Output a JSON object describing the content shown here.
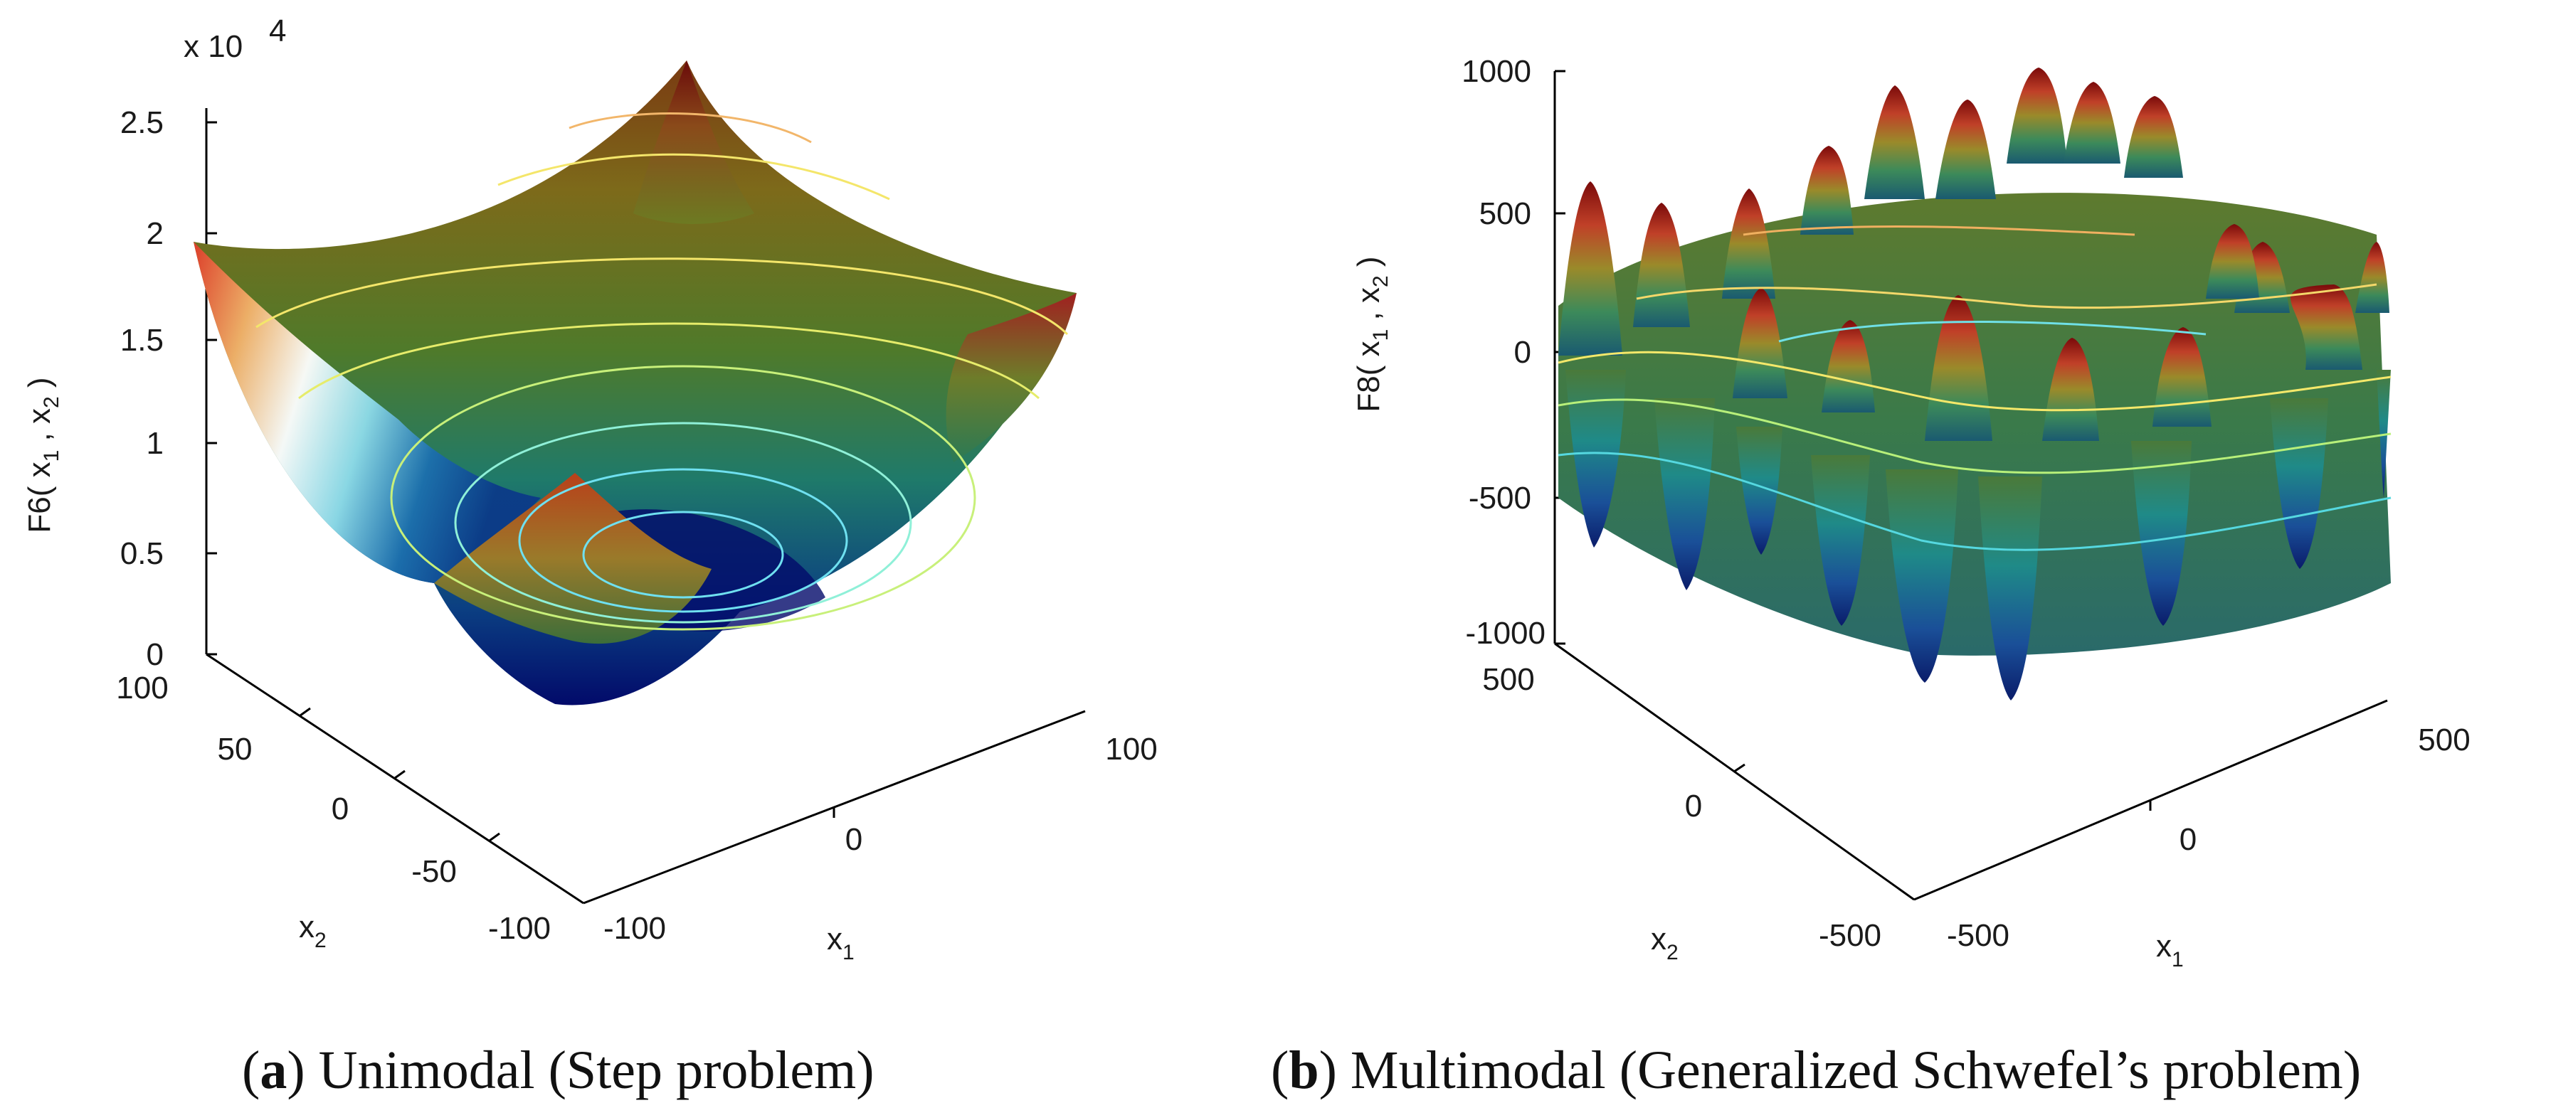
{
  "chart_data": [
    {
      "type": "surface3d",
      "panel": "a",
      "caption_label": "a",
      "caption_text": "Unimodal (Step problem)",
      "zlabel": "F6( x 1 , x 2 )",
      "zlabel_base": "F6( x",
      "zlabel_sub1": "1",
      "zlabel_mid": " , x",
      "zlabel_sub2": "2",
      "zlabel_end": " )",
      "xlabel": "x",
      "xlabel_sub": "1",
      "ylabel": "x",
      "ylabel_sub": "2",
      "z_exponent_prefix": "x 10",
      "z_exponent_power": "4",
      "z_ticks": [
        "0",
        "0.5",
        "1",
        "1.5",
        "2",
        "2.5"
      ],
      "x_ticks": [
        "-100",
        "0",
        "100"
      ],
      "y_ticks": [
        "100",
        "50",
        "0",
        "-50",
        "-100"
      ],
      "x_range": [
        -100,
        100
      ],
      "y_range": [
        -100,
        100
      ],
      "z_range": [
        0,
        25000
      ],
      "surface": "sum of squares (bowl)"
    },
    {
      "type": "surface3d",
      "panel": "b",
      "caption_label": "b",
      "caption_text": "Multimodal (Generalized Schwefel’s problem)",
      "zlabel": "F8( x 1 , x 2 )",
      "zlabel_base": "F8( x",
      "zlabel_sub1": "1",
      "zlabel_mid": " , x",
      "zlabel_sub2": "2",
      "zlabel_end": " )",
      "xlabel": "x",
      "xlabel_sub": "1",
      "ylabel": "x",
      "ylabel_sub": "2",
      "z_ticks": [
        "1000",
        "500",
        "0",
        "-500",
        "-1000"
      ],
      "x_ticks": [
        "-500",
        "0",
        "500"
      ],
      "y_ticks": [
        "500",
        "0",
        "-500"
      ],
      "x_range": [
        -500,
        500
      ],
      "y_range": [
        -500,
        500
      ],
      "z_range": [
        -1000,
        1000
      ],
      "surface": "Schwefel (x sin sqrt|x|)"
    }
  ],
  "colors": {
    "cmap_low": "#00008f",
    "cmap_high": "#7f0000",
    "axis": "#000000"
  }
}
